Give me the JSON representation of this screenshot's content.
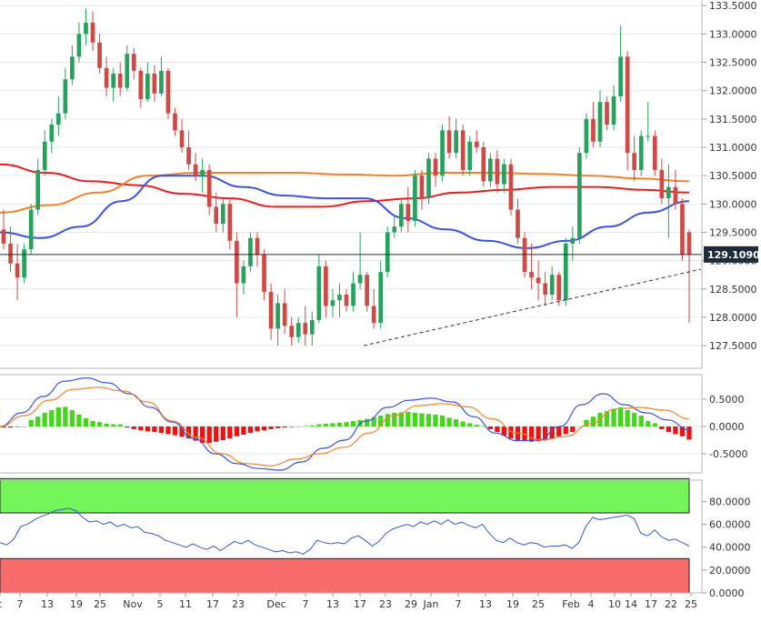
{
  "chart_data": {
    "type": "candlestick",
    "panels": [
      {
        "name": "price",
        "ylim": [
          127.1,
          133.6
        ],
        "y_ticks": [
          "133.5000",
          "133.0000",
          "132.5000",
          "132.0000",
          "131.5000",
          "131.0000",
          "130.5000",
          "130.0000",
          "129.5000",
          "129.0000",
          "128.5000",
          "128.0000",
          "127.5000"
        ],
        "last_price_label": "129.1090",
        "last_price": 129.109,
        "candles": [
          {
            "o": 129.55,
            "h": 129.9,
            "l": 129.2,
            "c": 129.3
          },
          {
            "o": 129.3,
            "h": 129.6,
            "l": 128.8,
            "c": 128.95
          },
          {
            "o": 128.95,
            "h": 129.3,
            "l": 128.3,
            "c": 128.7
          },
          {
            "o": 128.7,
            "h": 129.3,
            "l": 128.6,
            "c": 129.2
          },
          {
            "o": 129.2,
            "h": 130.0,
            "l": 129.1,
            "c": 129.9
          },
          {
            "o": 129.9,
            "h": 130.8,
            "l": 129.8,
            "c": 130.6
          },
          {
            "o": 130.6,
            "h": 131.3,
            "l": 130.5,
            "c": 131.1
          },
          {
            "o": 131.1,
            "h": 131.5,
            "l": 130.9,
            "c": 131.4
          },
          {
            "o": 131.4,
            "h": 131.9,
            "l": 131.2,
            "c": 131.6
          },
          {
            "o": 131.6,
            "h": 132.4,
            "l": 131.5,
            "c": 132.2
          },
          {
            "o": 132.2,
            "h": 132.8,
            "l": 132.1,
            "c": 132.6
          },
          {
            "o": 132.6,
            "h": 133.2,
            "l": 132.5,
            "c": 133.0
          },
          {
            "o": 133.0,
            "h": 133.45,
            "l": 132.8,
            "c": 133.2
          },
          {
            "o": 133.2,
            "h": 133.4,
            "l": 132.7,
            "c": 132.85
          },
          {
            "o": 132.85,
            "h": 133.0,
            "l": 132.3,
            "c": 132.4
          },
          {
            "o": 132.4,
            "h": 132.6,
            "l": 131.9,
            "c": 132.05
          },
          {
            "o": 132.05,
            "h": 132.4,
            "l": 131.8,
            "c": 132.3
          },
          {
            "o": 132.3,
            "h": 132.5,
            "l": 131.9,
            "c": 132.05
          },
          {
            "o": 132.05,
            "h": 132.8,
            "l": 132.0,
            "c": 132.65
          },
          {
            "o": 132.65,
            "h": 132.75,
            "l": 132.2,
            "c": 132.35
          },
          {
            "o": 132.35,
            "h": 132.4,
            "l": 131.7,
            "c": 131.85
          },
          {
            "o": 131.85,
            "h": 132.5,
            "l": 131.8,
            "c": 132.3
          },
          {
            "o": 132.3,
            "h": 132.45,
            "l": 131.8,
            "c": 131.95
          },
          {
            "o": 131.95,
            "h": 132.6,
            "l": 131.9,
            "c": 132.35
          },
          {
            "o": 132.35,
            "h": 132.4,
            "l": 131.5,
            "c": 131.6
          },
          {
            "o": 131.6,
            "h": 131.7,
            "l": 131.2,
            "c": 131.3
          },
          {
            "o": 131.3,
            "h": 131.5,
            "l": 130.9,
            "c": 131.0
          },
          {
            "o": 131.0,
            "h": 131.3,
            "l": 130.6,
            "c": 130.7
          },
          {
            "o": 130.7,
            "h": 130.9,
            "l": 130.4,
            "c": 130.5
          },
          {
            "o": 130.5,
            "h": 130.8,
            "l": 130.2,
            "c": 130.6
          },
          {
            "o": 130.6,
            "h": 130.7,
            "l": 129.8,
            "c": 129.95
          },
          {
            "o": 129.95,
            "h": 130.2,
            "l": 129.5,
            "c": 129.65
          },
          {
            "o": 129.65,
            "h": 130.1,
            "l": 129.5,
            "c": 130.0
          },
          {
            "o": 130.0,
            "h": 130.1,
            "l": 129.2,
            "c": 129.35
          },
          {
            "o": 129.35,
            "h": 129.5,
            "l": 128.0,
            "c": 128.6
          },
          {
            "o": 128.6,
            "h": 129.0,
            "l": 128.4,
            "c": 128.9
          },
          {
            "o": 128.9,
            "h": 129.5,
            "l": 128.8,
            "c": 129.4
          },
          {
            "o": 129.4,
            "h": 129.5,
            "l": 128.9,
            "c": 129.1
          },
          {
            "o": 129.1,
            "h": 129.2,
            "l": 128.3,
            "c": 128.45
          },
          {
            "o": 128.45,
            "h": 128.6,
            "l": 127.6,
            "c": 127.8
          },
          {
            "o": 127.8,
            "h": 128.4,
            "l": 127.5,
            "c": 128.25
          },
          {
            "o": 128.25,
            "h": 128.5,
            "l": 127.7,
            "c": 127.85
          },
          {
            "o": 127.85,
            "h": 128.0,
            "l": 127.5,
            "c": 127.65
          },
          {
            "o": 127.65,
            "h": 128.0,
            "l": 127.55,
            "c": 127.9
          },
          {
            "o": 127.9,
            "h": 128.2,
            "l": 127.5,
            "c": 127.7
          },
          {
            "o": 127.7,
            "h": 128.1,
            "l": 127.5,
            "c": 127.95
          },
          {
            "o": 127.95,
            "h": 129.1,
            "l": 127.9,
            "c": 128.9
          },
          {
            "o": 128.9,
            "h": 129.0,
            "l": 128.0,
            "c": 128.2
          },
          {
            "o": 128.2,
            "h": 128.5,
            "l": 128.0,
            "c": 128.3
          },
          {
            "o": 128.3,
            "h": 128.6,
            "l": 128.0,
            "c": 128.4
          },
          {
            "o": 128.4,
            "h": 128.5,
            "l": 128.1,
            "c": 128.2
          },
          {
            "o": 128.2,
            "h": 128.8,
            "l": 128.1,
            "c": 128.6
          },
          {
            "o": 128.6,
            "h": 129.5,
            "l": 128.5,
            "c": 128.75
          },
          {
            "o": 128.75,
            "h": 128.8,
            "l": 128.1,
            "c": 128.2
          },
          {
            "o": 128.2,
            "h": 128.5,
            "l": 127.8,
            "c": 127.9
          },
          {
            "o": 127.9,
            "h": 129.0,
            "l": 127.8,
            "c": 128.8
          },
          {
            "o": 128.8,
            "h": 129.6,
            "l": 128.7,
            "c": 129.5
          },
          {
            "o": 129.5,
            "h": 129.8,
            "l": 129.4,
            "c": 129.6
          },
          {
            "o": 129.6,
            "h": 130.1,
            "l": 129.5,
            "c": 130.0
          },
          {
            "o": 130.0,
            "h": 130.3,
            "l": 129.5,
            "c": 129.7
          },
          {
            "o": 129.7,
            "h": 130.6,
            "l": 129.6,
            "c": 130.5
          },
          {
            "o": 130.5,
            "h": 130.6,
            "l": 129.9,
            "c": 130.1
          },
          {
            "o": 130.1,
            "h": 130.9,
            "l": 130.0,
            "c": 130.8
          },
          {
            "o": 130.8,
            "h": 130.9,
            "l": 130.3,
            "c": 130.5
          },
          {
            "o": 130.5,
            "h": 131.4,
            "l": 130.4,
            "c": 131.3
          },
          {
            "o": 131.3,
            "h": 131.55,
            "l": 130.8,
            "c": 130.9
          },
          {
            "o": 130.9,
            "h": 131.5,
            "l": 130.8,
            "c": 131.3
          },
          {
            "o": 131.3,
            "h": 131.4,
            "l": 130.5,
            "c": 130.6
          },
          {
            "o": 130.6,
            "h": 131.2,
            "l": 130.5,
            "c": 131.1
          },
          {
            "o": 131.1,
            "h": 131.3,
            "l": 130.9,
            "c": 131.0
          },
          {
            "o": 131.0,
            "h": 131.1,
            "l": 130.3,
            "c": 130.4
          },
          {
            "o": 130.4,
            "h": 130.9,
            "l": 130.3,
            "c": 130.8
          },
          {
            "o": 130.8,
            "h": 130.95,
            "l": 130.2,
            "c": 130.35
          },
          {
            "o": 130.35,
            "h": 130.8,
            "l": 130.2,
            "c": 130.7
          },
          {
            "o": 130.7,
            "h": 130.8,
            "l": 129.8,
            "c": 129.9
          },
          {
            "o": 129.9,
            "h": 130.1,
            "l": 129.3,
            "c": 129.4
          },
          {
            "o": 129.4,
            "h": 129.5,
            "l": 128.7,
            "c": 128.8
          },
          {
            "o": 128.8,
            "h": 129.3,
            "l": 128.5,
            "c": 128.7
          },
          {
            "o": 128.7,
            "h": 129.0,
            "l": 128.3,
            "c": 128.6
          },
          {
            "o": 128.6,
            "h": 128.8,
            "l": 128.2,
            "c": 128.4
          },
          {
            "o": 128.4,
            "h": 128.9,
            "l": 128.3,
            "c": 128.75
          },
          {
            "o": 128.75,
            "h": 128.8,
            "l": 128.2,
            "c": 128.3
          },
          {
            "o": 128.3,
            "h": 129.4,
            "l": 128.2,
            "c": 129.3
          },
          {
            "o": 129.3,
            "h": 129.6,
            "l": 129.0,
            "c": 129.4
          },
          {
            "o": 129.4,
            "h": 131.0,
            "l": 129.3,
            "c": 130.9
          },
          {
            "o": 130.9,
            "h": 131.6,
            "l": 130.8,
            "c": 131.5
          },
          {
            "o": 131.5,
            "h": 131.8,
            "l": 131.0,
            "c": 131.1
          },
          {
            "o": 131.1,
            "h": 132.0,
            "l": 131.0,
            "c": 131.8
          },
          {
            "o": 131.8,
            "h": 131.9,
            "l": 131.3,
            "c": 131.4
          },
          {
            "o": 131.4,
            "h": 132.1,
            "l": 131.3,
            "c": 131.9
          },
          {
            "o": 131.9,
            "h": 133.15,
            "l": 131.8,
            "c": 132.6
          },
          {
            "o": 132.6,
            "h": 132.7,
            "l": 130.6,
            "c": 130.9
          },
          {
            "o": 130.9,
            "h": 131.2,
            "l": 130.4,
            "c": 130.6
          },
          {
            "o": 130.6,
            "h": 131.3,
            "l": 130.5,
            "c": 131.2
          },
          {
            "o": 131.2,
            "h": 131.8,
            "l": 131.1,
            "c": 131.2
          },
          {
            "o": 131.2,
            "h": 131.3,
            "l": 130.5,
            "c": 130.6
          },
          {
            "o": 130.6,
            "h": 130.8,
            "l": 130.0,
            "c": 130.1
          },
          {
            "o": 130.1,
            "h": 130.7,
            "l": 129.4,
            "c": 130.3
          },
          {
            "o": 130.3,
            "h": 130.6,
            "l": 129.9,
            "c": 130.0
          },
          {
            "o": 130.0,
            "h": 130.1,
            "l": 129.0,
            "c": 129.1
          },
          {
            "o": 129.5,
            "h": 129.55,
            "l": 127.9,
            "c": 129.109
          }
        ],
        "moving_averages": [
          {
            "color": "#ee1c1c",
            "values": [
              130.7,
              130.55,
              130.4,
              130.33,
              130.18,
              130.1,
              129.95,
              129.95,
              130.05,
              130.1,
              130.2,
              130.25,
              130.3,
              130.3,
              130.25,
              130.2
            ]
          },
          {
            "color": "#ff8c00",
            "values": [
              129.85,
              129.98,
              130.2,
              130.5,
              130.55,
              130.55,
              130.55,
              130.52,
              130.5,
              130.55,
              130.55,
              130.53,
              130.5,
              130.45,
              130.4
            ]
          },
          {
            "color": "#1c1cee",
            "values": [
              129.5,
              129.4,
              129.6,
              130.05,
              130.5,
              130.5,
              130.3,
              130.15,
              130.1,
              130.1,
              129.75,
              129.55,
              129.35,
              129.22,
              129.35,
              129.6,
              129.85,
              130.05
            ]
          }
        ],
        "trendline": {
          "from": 127.5,
          "to": 128.85
        }
      },
      {
        "name": "macd",
        "ylim": [
          -0.85,
          0.95
        ],
        "y_ticks": [
          "0.5000",
          "0.0000",
          "-0.5000"
        ],
        "histogram": [
          -0.02,
          -0.02,
          -0.01,
          0.0,
          0.12,
          0.18,
          0.25,
          0.3,
          0.35,
          0.36,
          0.3,
          0.22,
          0.15,
          0.1,
          0.08,
          0.05,
          0.04,
          0.04,
          -0.02,
          -0.05,
          -0.07,
          -0.09,
          -0.1,
          -0.12,
          -0.14,
          -0.16,
          -0.19,
          -0.22,
          -0.26,
          -0.3,
          -0.3,
          -0.28,
          -0.25,
          -0.22,
          -0.18,
          -0.15,
          -0.12,
          -0.09,
          -0.07,
          -0.05,
          -0.03,
          -0.02,
          -0.01,
          0.0,
          0.01,
          0.02,
          0.04,
          0.05,
          0.06,
          0.07,
          0.08,
          0.1,
          0.12,
          0.14,
          0.17,
          0.2,
          0.23,
          0.25,
          0.26,
          0.27,
          0.25,
          0.24,
          0.23,
          0.22,
          0.2,
          0.16,
          0.13,
          0.09,
          0.06,
          0.03,
          0.01,
          -0.05,
          -0.1,
          -0.17,
          -0.22,
          -0.25,
          -0.27,
          -0.28,
          -0.27,
          -0.25,
          -0.22,
          -0.18,
          -0.14,
          -0.1,
          0.0,
          0.12,
          0.18,
          0.25,
          0.28,
          0.32,
          0.35,
          0.3,
          0.25,
          0.2,
          0.1,
          0.06,
          -0.05,
          -0.1,
          -0.14,
          -0.18,
          -0.24
        ],
        "macd_line": [
          0.0,
          0.25,
          0.55,
          0.83,
          0.89,
          0.8,
          0.6,
          0.35,
          0.08,
          -0.22,
          -0.5,
          -0.68,
          -0.77,
          -0.8,
          -0.65,
          -0.4,
          -0.25,
          0.1,
          0.35,
          0.48,
          0.52,
          0.45,
          0.18,
          -0.12,
          -0.26,
          -0.25,
          0.0,
          0.4,
          0.6,
          0.4,
          0.25,
          0.12,
          -0.06
        ],
        "signal_line": [
          0.0,
          0.2,
          0.48,
          0.68,
          0.72,
          0.65,
          0.45,
          0.1,
          -0.2,
          -0.5,
          -0.68,
          -0.72,
          -0.6,
          -0.5,
          -0.38,
          -0.12,
          0.2,
          0.38,
          0.42,
          0.36,
          0.14,
          -0.12,
          -0.25,
          -0.18,
          0.05,
          0.32,
          0.35,
          0.3,
          0.14
        ]
      },
      {
        "name": "rsi",
        "ylim": [
          0,
          100
        ],
        "y_ticks": [
          "80.0000",
          "60.0000",
          "40.0000",
          "20.0000",
          "0.0000"
        ],
        "overbought": 70,
        "oversold": 30,
        "values": [
          44,
          42,
          47,
          58,
          60,
          64,
          67,
          69,
          72,
          73,
          74,
          72,
          66,
          62,
          63,
          60,
          62,
          58,
          60,
          57,
          58,
          53,
          52,
          50,
          46,
          44,
          42,
          40,
          43,
          40,
          38,
          41,
          37,
          41,
          45,
          43,
          46,
          42,
          40,
          38,
          36,
          37,
          35,
          36,
          34,
          38,
          46,
          44,
          43,
          44,
          43,
          48,
          50,
          46,
          41,
          45,
          52,
          56,
          58,
          60,
          58,
          62,
          60,
          63,
          60,
          64,
          60,
          62,
          59,
          57,
          60,
          52,
          46,
          44,
          48,
          44,
          42,
          44,
          43,
          40,
          41,
          41,
          42,
          39,
          44,
          58,
          66,
          64,
          65,
          66,
          67,
          68,
          65,
          52,
          50,
          55,
          49,
          46,
          47,
          44,
          41
        ]
      }
    ],
    "x_tick_labels": [
      "t",
      "7",
      "13",
      "19",
      "25",
      "Nov",
      "5",
      "11",
      "17",
      "23",
      "Dec",
      "7",
      "13",
      "17",
      "23",
      "29",
      "Jan",
      "7",
      "13",
      "19",
      "25",
      "Feb",
      "4",
      "10",
      "14",
      "17",
      "22",
      "25"
    ],
    "colors": {
      "up": "#26a25c",
      "down": "#d04a45",
      "blue_line": "#3a53e0",
      "orange_line": "#f5822a",
      "hist_up": "#44d61a",
      "hist_down": "#ee1111",
      "rsi_line": "#3358d6",
      "overbought_fill": "#73f55a",
      "oversold_fill": "#f86b6b",
      "label_bg": "#1d2b3a"
    }
  }
}
